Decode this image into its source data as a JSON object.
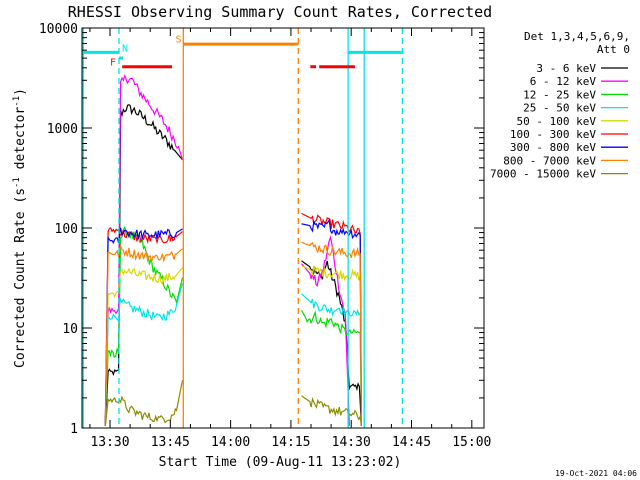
{
  "chart_data": {
    "type": "line",
    "title": "RHESSI Observing Summary Count Rates, Corrected",
    "xlabel": "Start Time (09-Aug-11 13:23:02)",
    "ylabel_main": "Corrected Count Rate (s",
    "ylabel_sup": "-1",
    "ylabel_mid": " detector",
    "ylabel_end": ")",
    "yscale": "log",
    "ylim": [
      1,
      10000
    ],
    "xlim_minutes": [
      0,
      100
    ],
    "x_ticks": [
      {
        "label": "13:30",
        "t": 6.97
      },
      {
        "label": "13:45",
        "t": 21.97
      },
      {
        "label": "14:00",
        "t": 36.97
      },
      {
        "label": "14:15",
        "t": 51.97
      },
      {
        "label": "14:30",
        "t": 66.97
      },
      {
        "label": "14:45",
        "t": 81.97
      },
      {
        "label": "15:00",
        "t": 96.97
      }
    ],
    "y_ticks": [
      {
        "label": "1",
        "v": 1
      },
      {
        "label": "10",
        "v": 10
      },
      {
        "label": "100",
        "v": 100
      },
      {
        "label": "1000",
        "v": 1000
      },
      {
        "label": "10000",
        "v": 10000
      }
    ],
    "legend": {
      "placement": "right",
      "header": [
        "Det 1,3,4,5,6,9,",
        "Att 0"
      ],
      "entries": [
        {
          "label": "3 - 6 keV",
          "color": "#000000"
        },
        {
          "label": "6 - 12 keV",
          "color": "#ff00ff"
        },
        {
          "label": "12 - 25 keV",
          "color": "#00dd00"
        },
        {
          "label": "25 - 50 keV",
          "color": "#00e5e5"
        },
        {
          "label": "50 - 100 keV",
          "color": "#d8d800"
        },
        {
          "label": "100 - 300 keV",
          "color": "#ff0000"
        },
        {
          "label": "300 - 800 keV",
          "color": "#0000ff"
        },
        {
          "label": "800 - 7000 keV",
          "color": "#ff8000"
        },
        {
          "label": "7000 - 15000 keV",
          "color": "#8b8b00"
        }
      ]
    },
    "series": [
      {
        "color": "#000000",
        "segments": [
          [
            [
              5.8,
              1.05
            ],
            [
              6.5,
              3.6
            ],
            [
              9.1,
              3.6
            ],
            [
              9.6,
              1400
            ],
            [
              11,
              1600
            ],
            [
              13,
              1500
            ],
            [
              15,
              1300
            ],
            [
              17,
              1100
            ],
            [
              19,
              900
            ],
            [
              21,
              750
            ],
            [
              23,
              600
            ],
            [
              25,
              480
            ]
          ],
          [
            [
              54.6,
              47
            ],
            [
              57,
              40
            ],
            [
              59.5,
              32
            ],
            [
              61,
              45
            ],
            [
              62.5,
              30
            ],
            [
              64,
              20
            ],
            [
              65.5,
              11
            ],
            [
              66.5,
              2.6
            ],
            [
              69,
              2.6
            ],
            [
              69.5,
              1.05
            ]
          ]
        ]
      },
      {
        "color": "#ff00ff",
        "segments": [
          [
            [
              5.8,
              1.05
            ],
            [
              6.5,
              15
            ],
            [
              9.1,
              15
            ],
            [
              9.6,
              2700
            ],
            [
              11,
              3200
            ],
            [
              12.5,
              3000
            ],
            [
              14,
              2400
            ],
            [
              16,
              1900
            ],
            [
              18,
              1500
            ],
            [
              20,
              1200
            ],
            [
              22,
              900
            ],
            [
              24,
              650
            ],
            [
              25,
              480
            ]
          ],
          [
            [
              54.6,
              44
            ],
            [
              57,
              34
            ],
            [
              58.5,
              28
            ],
            [
              60,
              38
            ],
            [
              61,
              58
            ],
            [
              61.8,
              80
            ],
            [
              62.5,
              55
            ],
            [
              63.5,
              32
            ],
            [
              64.5,
              20
            ],
            [
              65.5,
              14
            ],
            [
              66.5,
              1.05
            ]
          ]
        ]
      },
      {
        "color": "#00dd00",
        "segments": [
          [
            [
              5.8,
              1.05
            ],
            [
              6.5,
              6
            ],
            [
              8,
              5
            ],
            [
              9.1,
              6
            ],
            [
              9.6,
              80
            ],
            [
              11,
              95
            ],
            [
              13,
              80
            ],
            [
              15,
              70
            ],
            [
              16.5,
              50
            ],
            [
              18,
              38
            ],
            [
              20,
              30
            ],
            [
              22,
              22
            ],
            [
              23.5,
              18
            ],
            [
              25,
              32
            ]
          ],
          [
            [
              54.6,
              15
            ],
            [
              56,
              12
            ],
            [
              58,
              13
            ],
            [
              60,
              11
            ],
            [
              62,
              12
            ],
            [
              64,
              10
            ],
            [
              66,
              9
            ],
            [
              69.2,
              9
            ],
            [
              69.5,
              1.05
            ]
          ]
        ]
      },
      {
        "color": "#00e5e5",
        "segments": [
          [
            [
              5.8,
              1.05
            ],
            [
              6.5,
              13
            ],
            [
              9.1,
              13
            ],
            [
              9.6,
              18
            ],
            [
              12,
              16
            ],
            [
              14,
              15
            ],
            [
              16,
              14
            ],
            [
              18,
              13
            ],
            [
              20,
              13
            ],
            [
              22,
              14
            ],
            [
              23.5,
              17
            ],
            [
              25,
              28
            ]
          ],
          [
            [
              54.6,
              22
            ],
            [
              57,
              18
            ],
            [
              60,
              16
            ],
            [
              62,
              15
            ],
            [
              64,
              16
            ],
            [
              66,
              14
            ],
            [
              69.2,
              14
            ],
            [
              69.5,
              1.05
            ]
          ]
        ]
      },
      {
        "color": "#d8d800",
        "segments": [
          [
            [
              5.8,
              1.05
            ],
            [
              6.5,
              22
            ],
            [
              9.1,
              22
            ],
            [
              9.6,
              38
            ],
            [
              12,
              36
            ],
            [
              14,
              34
            ],
            [
              16,
              33
            ],
            [
              18,
              32
            ],
            [
              20,
              31
            ],
            [
              22,
              32
            ],
            [
              23.5,
              34
            ],
            [
              25,
              40
            ]
          ],
          [
            [
              54.6,
              42
            ],
            [
              57,
              38
            ],
            [
              60,
              36
            ],
            [
              63,
              35
            ],
            [
              66,
              34
            ],
            [
              69.2,
              33
            ],
            [
              69.5,
              1.05
            ]
          ]
        ]
      },
      {
        "color": "#ff0000",
        "segments": [
          [
            [
              5.8,
              1.05
            ],
            [
              6.5,
              95
            ],
            [
              9.1,
              95
            ],
            [
              9.6,
              90
            ],
            [
              12,
              84
            ],
            [
              14,
              80
            ],
            [
              16,
              78
            ],
            [
              18,
              77
            ],
            [
              20,
              77
            ],
            [
              22,
              78
            ],
            [
              23.5,
              82
            ],
            [
              25,
              92
            ]
          ],
          [
            [
              54.6,
              140
            ],
            [
              57,
              125
            ],
            [
              60,
              115
            ],
            [
              63,
              108
            ],
            [
              66,
              100
            ],
            [
              69.2,
              88
            ],
            [
              69.5,
              1.05
            ]
          ]
        ]
      },
      {
        "color": "#0000ff",
        "segments": [
          [
            [
              5.8,
              1.05
            ],
            [
              6.5,
              75
            ],
            [
              9.1,
              75
            ],
            [
              9.6,
              95
            ],
            [
              12,
              90
            ],
            [
              14,
              86
            ],
            [
              16,
              85
            ],
            [
              18,
              85
            ],
            [
              20,
              86
            ],
            [
              22,
              87
            ],
            [
              23.5,
              90
            ],
            [
              25,
              98
            ]
          ],
          [
            [
              54.6,
              110
            ],
            [
              57,
              105
            ],
            [
              60,
              100
            ],
            [
              61.5,
              110
            ],
            [
              62.5,
              95
            ],
            [
              64,
              92
            ],
            [
              66,
              92
            ],
            [
              69.2,
              85
            ],
            [
              69.5,
              1.05
            ]
          ]
        ]
      },
      {
        "color": "#ff8000",
        "segments": [
          [
            [
              5.8,
              1.05
            ],
            [
              6.5,
              56
            ],
            [
              9.1,
              56
            ],
            [
              9.6,
              60
            ],
            [
              12,
              57
            ],
            [
              14,
              54
            ],
            [
              16,
              52
            ],
            [
              18,
              51
            ],
            [
              20,
              51
            ],
            [
              22,
              52
            ],
            [
              23.5,
              55
            ],
            [
              25,
              62
            ]
          ],
          [
            [
              54.6,
              72
            ],
            [
              57,
              66
            ],
            [
              60,
              62
            ],
            [
              63,
              58
            ],
            [
              66,
              56
            ],
            [
              69.2,
              55
            ],
            [
              69.5,
              1.05
            ]
          ]
        ]
      },
      {
        "color": "#8b8b00",
        "segments": [
          [
            [
              5.8,
              1.05
            ],
            [
              6.5,
              1.9
            ],
            [
              9.1,
              1.9
            ],
            [
              9.6,
              1.9
            ],
            [
              12,
              1.5
            ],
            [
              14,
              1.4
            ],
            [
              16,
              1.3
            ],
            [
              18,
              1.25
            ],
            [
              20,
              1.25
            ],
            [
              22,
              1.3
            ],
            [
              23.5,
              1.5
            ],
            [
              25,
              3
            ]
          ],
          [
            [
              54.6,
              2.1
            ],
            [
              57,
              1.8
            ],
            [
              60,
              1.6
            ],
            [
              63,
              1.5
            ],
            [
              66,
              1.4
            ],
            [
              69.2,
              1.3
            ],
            [
              69.5,
              1.05
            ]
          ]
        ]
      }
    ],
    "annotations": {
      "vertical_lines": [
        {
          "t": 9.2,
          "color": "#00e5e5",
          "dashed": true
        },
        {
          "t": 25.2,
          "color": "#ff8000",
          "dashed": false
        },
        {
          "t": 53.8,
          "color": "#ff8000",
          "dashed": true
        },
        {
          "t": 66.2,
          "color": "#00e5e5",
          "dashed": false
        },
        {
          "t": 70.2,
          "color": "#00e5e5",
          "dashed": false
        },
        {
          "t": 79.7,
          "color": "#00e5e5",
          "dashed": true
        },
        {
          "t": 0.3,
          "color": "#00e5e5",
          "dashed": false
        }
      ],
      "bars": [
        {
          "t0": 0,
          "t1": 9.2,
          "v": 5700,
          "color": "#00e5e5"
        },
        {
          "t0": 9.2,
          "t1": 10.2,
          "v": 5000,
          "color": "#00e5e5"
        },
        {
          "t0": 66.2,
          "t1": 79.5,
          "v": 5700,
          "color": "#00e5e5"
        },
        {
          "t0": 10.0,
          "t1": 22.4,
          "v": 4100,
          "color": "#ff0000"
        },
        {
          "t0": 56.8,
          "t1": 58.2,
          "v": 4100,
          "color": "#ff0000"
        },
        {
          "t0": 59.0,
          "t1": 67.9,
          "v": 4100,
          "color": "#ff0000"
        },
        {
          "t0": 25.3,
          "t1": 53.8,
          "v": 6900,
          "color": "#ff8000"
        }
      ],
      "flags": [
        {
          "text": "F",
          "t": 7.7,
          "v": 4200,
          "color": "#ff0000"
        },
        {
          "text": "N",
          "t": 10.7,
          "v": 5800,
          "color": "#00e5e5"
        },
        {
          "text": "S",
          "t": 24.0,
          "v": 7200,
          "color": "#ff8000"
        }
      ]
    },
    "footer_timestamp": "19-Oct-2021 04:06"
  }
}
